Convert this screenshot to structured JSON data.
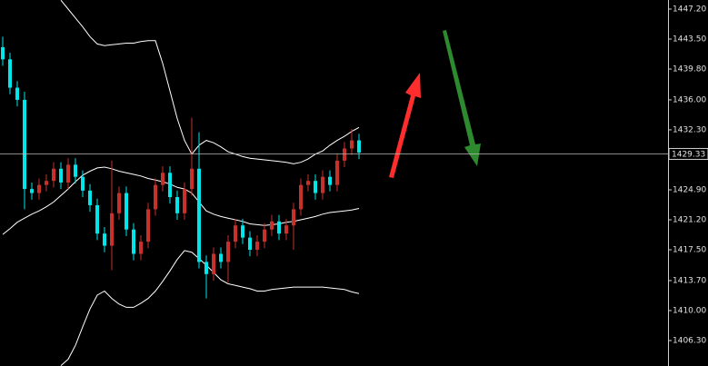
{
  "chart_data": {
    "type": "candlestick",
    "open": [
      1442.5,
      1441.0,
      1437.5,
      1436.0,
      1425.0,
      1424.5,
      1425.5,
      1426.0,
      1427.5,
      1425.8,
      1428.0,
      1426.5,
      1424.8,
      1423.0,
      1419.5,
      1418.0,
      1422.0,
      1424.5,
      1420.0,
      1417.0,
      1418.5,
      1422.5,
      1425.5,
      1427.0,
      1424.0,
      1422.0,
      1425.0,
      1427.5,
      1416.0,
      1414.5,
      1417.0,
      1416.0,
      1418.5,
      1420.5,
      1419.0,
      1417.5,
      1418.5,
      1420.0,
      1421.0,
      1419.5,
      1420.5,
      1422.5,
      1425.5,
      1426.0,
      1424.5,
      1426.5,
      1425.5,
      1428.5,
      1430.0,
      1431.0
    ],
    "high": [
      1443.8,
      1441.8,
      1438.3,
      1437.0,
      1425.8,
      1426.3,
      1426.8,
      1428.3,
      1428.3,
      1428.8,
      1428.8,
      1427.3,
      1425.6,
      1423.8,
      1420.3,
      1428.5,
      1425.3,
      1425.3,
      1420.8,
      1419.3,
      1423.3,
      1426.3,
      1427.8,
      1427.8,
      1424.8,
      1425.8,
      1433.8,
      1432.0,
      1416.8,
      1417.8,
      1417.8,
      1419.3,
      1421.3,
      1421.3,
      1419.8,
      1419.3,
      1420.8,
      1421.8,
      1421.8,
      1421.3,
      1423.3,
      1426.3,
      1426.8,
      1426.8,
      1427.3,
      1427.3,
      1429.3,
      1430.8,
      1432.4,
      1431.8
    ],
    "low": [
      1440.2,
      1436.7,
      1435.2,
      1422.5,
      1423.7,
      1423.7,
      1424.7,
      1425.2,
      1425.0,
      1425.0,
      1425.7,
      1424.0,
      1422.2,
      1418.7,
      1417.2,
      1415.0,
      1421.2,
      1419.2,
      1416.2,
      1416.2,
      1417.7,
      1421.7,
      1424.7,
      1423.2,
      1421.2,
      1421.2,
      1424.2,
      1415.2,
      1411.5,
      1413.7,
      1415.2,
      1413.5,
      1417.7,
      1418.2,
      1416.7,
      1416.7,
      1417.7,
      1419.2,
      1418.7,
      1418.7,
      1417.5,
      1421.7,
      1424.7,
      1423.7,
      1423.7,
      1424.7,
      1424.7,
      1427.7,
      1429.2,
      1428.7
    ],
    "close": [
      1441.0,
      1437.5,
      1436.0,
      1425.0,
      1424.5,
      1425.5,
      1426.0,
      1427.5,
      1425.8,
      1428.0,
      1426.5,
      1424.8,
      1423.0,
      1419.5,
      1418.0,
      1422.0,
      1424.5,
      1420.0,
      1417.0,
      1418.5,
      1422.5,
      1425.5,
      1427.0,
      1424.0,
      1422.0,
      1425.0,
      1427.5,
      1416.0,
      1414.5,
      1417.0,
      1416.0,
      1418.5,
      1420.5,
      1419.0,
      1417.5,
      1418.5,
      1420.0,
      1421.0,
      1419.5,
      1420.5,
      1422.5,
      1425.5,
      1426.0,
      1424.5,
      1426.5,
      1425.5,
      1428.5,
      1430.0,
      1431.0,
      1429.5
    ],
    "up_color": "#c8302c",
    "down_color": "#00e6ea",
    "bands": [
      {
        "color": "#ffffff",
        "values": [
          null,
          null,
          null,
          null,
          null,
          null,
          null,
          null,
          1448.3,
          1447.2,
          1446.1,
          1445.0,
          1443.8,
          1442.9,
          1442.7,
          1442.8,
          1442.9,
          1443.0,
          1443.0,
          1443.2,
          1443.3,
          1443.3,
          1440.5,
          1437.1,
          1433.7,
          1431.0,
          1429.3,
          1430.4,
          1431.0,
          1430.7,
          1430.2,
          1429.6,
          1429.3,
          1429.0,
          1428.8,
          1428.7,
          1428.6,
          1428.5,
          1428.4,
          1428.3,
          1428.1,
          1428.3,
          1428.7,
          1429.3,
          1429.7,
          1430.4,
          1431.0,
          1431.5,
          1432.1,
          1432.6
        ]
      },
      {
        "color": "#ffffff",
        "values": [
          1419.4,
          1420.1,
          1420.9,
          1421.4,
          1421.9,
          1422.3,
          1422.8,
          1423.4,
          1424.2,
          1425.0,
          1425.9,
          1426.7,
          1427.2,
          1427.6,
          1427.7,
          1427.5,
          1427.2,
          1427.0,
          1426.8,
          1426.6,
          1426.3,
          1426.1,
          1425.9,
          1425.6,
          1425.2,
          1425.0,
          1424.5,
          1423.4,
          1422.3,
          1421.9,
          1421.6,
          1421.4,
          1421.2,
          1421.0,
          1420.7,
          1420.6,
          1420.5,
          1420.6,
          1420.7,
          1420.9,
          1421.0,
          1421.2,
          1421.4,
          1421.6,
          1421.9,
          1422.1,
          1422.2,
          1422.3,
          1422.4,
          1422.6
        ]
      },
      {
        "color": "#ffffff",
        "values": [
          null,
          null,
          null,
          null,
          null,
          null,
          null,
          null,
          1403.2,
          1404.0,
          1405.7,
          1408.0,
          1410.2,
          1411.9,
          1412.4,
          1411.5,
          1410.8,
          1410.4,
          1410.4,
          1410.9,
          1411.5,
          1412.4,
          1413.6,
          1414.9,
          1416.3,
          1417.4,
          1417.2,
          1416.4,
          1415.6,
          1414.7,
          1413.8,
          1413.3,
          1413.1,
          1412.9,
          1412.7,
          1412.4,
          1412.4,
          1412.6,
          1412.7,
          1412.8,
          1412.9,
          1412.9,
          1412.9,
          1412.9,
          1412.9,
          1412.8,
          1412.7,
          1412.6,
          1412.3,
          1412.1
        ]
      }
    ],
    "last_price": {
      "value": 1429.33,
      "label": "1429.33"
    },
    "ylim": [
      1403.16,
      1448.32
    ],
    "yticks": [
      {
        "value": 1447.2,
        "label": "1447.20"
      },
      {
        "value": 1443.5,
        "label": "1443.50"
      },
      {
        "value": 1439.8,
        "label": "1439.80"
      },
      {
        "value": 1436.0,
        "label": "1436.00"
      },
      {
        "value": 1432.3,
        "label": "1432.30"
      },
      {
        "value": 1424.9,
        "label": "1424.90"
      },
      {
        "value": 1421.2,
        "label": "1421.20"
      },
      {
        "value": 1417.5,
        "label": "1417.50"
      },
      {
        "value": 1413.7,
        "label": "1413.70"
      },
      {
        "value": 1410.0,
        "label": "1410.00"
      },
      {
        "value": 1406.3,
        "label": "1406.30"
      }
    ]
  }
}
